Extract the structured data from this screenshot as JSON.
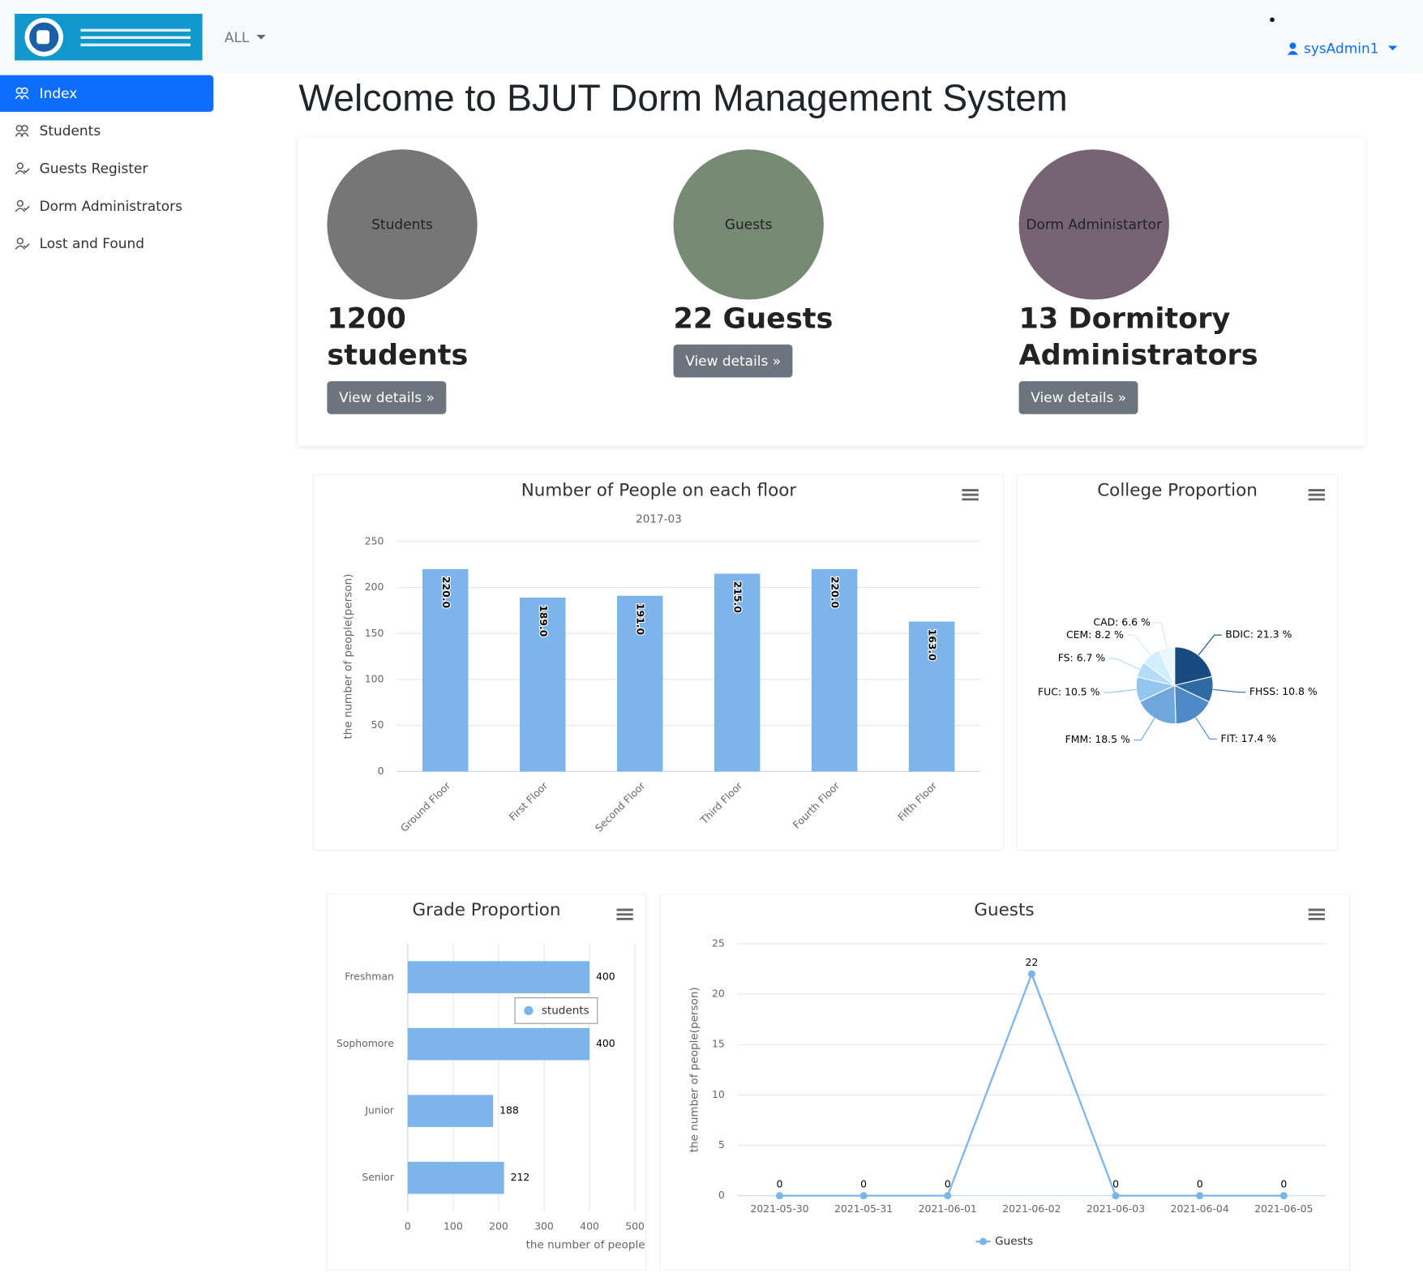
{
  "header": {
    "filter": "ALL",
    "user": "sysAdmin1"
  },
  "sidebar": {
    "items": [
      "Index",
      "Students",
      "Guests Register",
      "Dorm Administrators",
      "Lost and Found"
    ]
  },
  "title": "Welcome to BJUT Dorm Management System",
  "cards": [
    {
      "circle": "Students",
      "count": "1200 students",
      "button": "View details »"
    },
    {
      "circle": "Guests",
      "count": "22 Guests",
      "button": "View details »"
    },
    {
      "circle": "Dorm Administartor",
      "count": "13 Dormitory Administrators",
      "button": "View details »"
    }
  ],
  "chart_data": [
    {
      "type": "bar",
      "title": "Number of People on each floor",
      "subtitle": "2017-03",
      "y_label": "the number of people(person)",
      "categories": [
        "Ground Floor",
        "First Floor",
        "Second Floor",
        "Third Floor",
        "Fourth Floor",
        "Fifth Floor"
      ],
      "values": [
        220,
        189,
        191,
        215,
        220,
        163
      ],
      "value_labels": [
        "220.0",
        "189.0",
        "191.0",
        "215.0",
        "220.0",
        "163.0"
      ],
      "color": "#7cb5ec",
      "ylim": [
        0,
        250
      ],
      "yticks": [
        0,
        50,
        100,
        150,
        200,
        250
      ],
      "grid": true
    },
    {
      "type": "pie",
      "title": "College Proportion",
      "values": [
        21.3,
        10.8,
        17.4,
        18.5,
        10.5,
        6.7,
        8.2,
        6.6
      ],
      "value_labels": [
        "BDIC: 21.3 %",
        "FHSS: 10.8 %",
        "FIT: 17.4 %",
        "FMM: 18.5 %",
        "FUC: 10.5 %",
        "FS: 6.7 %",
        "CEM: 8.2 %",
        "CAD: 6.6 %"
      ],
      "colors": [
        "#164a80",
        "#2f6aa5",
        "#4f8ac6",
        "#6fa6dc",
        "#92c5f0",
        "#b3dcf8",
        "#d2edfc",
        "#edf8fe"
      ]
    },
    {
      "type": "hbar",
      "title": "Grade Proportion",
      "x_label": "the number of people",
      "categories": [
        "Freshman",
        "Sophomore",
        "Junior",
        "Senior"
      ],
      "series": [
        {
          "name": "students",
          "color": "#7cb5ec",
          "values": [
            400,
            400,
            188,
            212
          ]
        }
      ],
      "xlim": [
        0,
        500
      ],
      "xticks": [
        0,
        100,
        200,
        300,
        400,
        500
      ],
      "grid": true
    },
    {
      "type": "line",
      "title": "Guests",
      "y_label": "the number of people(person)",
      "categories": [
        "2021-05-30",
        "2021-05-31",
        "2021-06-01",
        "2021-06-02",
        "2021-06-03",
        "2021-06-04",
        "2021-06-05"
      ],
      "series": [
        {
          "name": "Guests",
          "color": "#7cb5ec",
          "values": [
            0,
            0,
            0,
            22,
            0,
            0,
            0
          ]
        }
      ],
      "ylim": [
        0,
        25
      ],
      "yticks": [
        0,
        5,
        10,
        15,
        20,
        25
      ],
      "grid": true
    }
  ]
}
